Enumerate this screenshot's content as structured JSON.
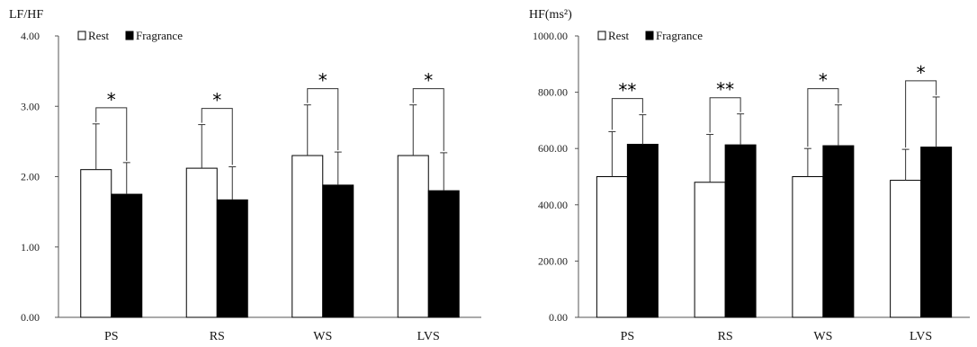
{
  "chart_data": [
    {
      "type": "bar",
      "ylabel": "LF/HF",
      "ylim": [
        0,
        4
      ],
      "yticks": [
        "0.00",
        "1.00",
        "2.00",
        "3.00",
        "4.00"
      ],
      "categories": [
        "PS",
        "RS",
        "WS",
        "LVS"
      ],
      "series": [
        {
          "name": "Rest",
          "values": [
            2.1,
            2.12,
            2.3,
            2.3
          ],
          "error": [
            0.65,
            0.62,
            0.72,
            0.72
          ],
          "color": "#ffffff"
        },
        {
          "name": "Fragrance",
          "values": [
            1.75,
            1.67,
            1.88,
            1.8
          ],
          "error": [
            0.45,
            0.47,
            0.47,
            0.54
          ],
          "color": "#000000"
        }
      ],
      "significance": [
        "*",
        "*",
        "*",
        "*"
      ],
      "legend_position": "top-left",
      "grid": false
    },
    {
      "type": "bar",
      "ylabel": "HF(ms²)",
      "ylim": [
        0,
        1000
      ],
      "yticks": [
        "0.00",
        "200.00",
        "400.00",
        "600.00",
        "800.00",
        "1000.00"
      ],
      "categories": [
        "PS",
        "RS",
        "WS",
        "LVS"
      ],
      "series": [
        {
          "name": "Rest",
          "values": [
            500,
            480,
            500,
            487
          ],
          "error": [
            160,
            170,
            100,
            110
          ],
          "color": "#ffffff"
        },
        {
          "name": "Fragrance",
          "values": [
            615,
            613,
            610,
            605
          ],
          "error": [
            105,
            110,
            145,
            178
          ],
          "color": "#000000"
        }
      ],
      "significance": [
        "**",
        "**",
        "*",
        "*"
      ],
      "legend_position": "top-left",
      "grid": false
    }
  ]
}
